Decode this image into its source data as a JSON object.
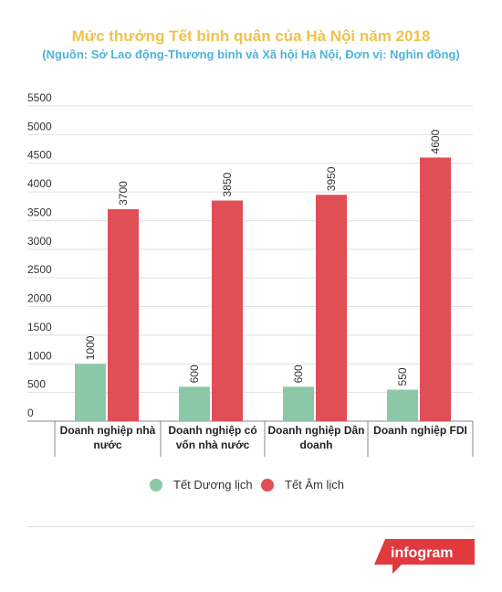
{
  "title": "Mức thưởng Tết bình quân của Hà Nội năm 2018",
  "subtitle": "(Nguồn: Sở Lao động-Thương binh và Xã hội Hà Nội, Đơn vị: Nghìn đồng)",
  "brand": "infogram",
  "colors": {
    "title": "#f0c24b",
    "subtitle": "#4fb3d9",
    "series1": "#8cc8a8",
    "series2": "#e04f55",
    "brand": "#e03a3e"
  },
  "chart_data": {
    "type": "bar",
    "title": "Mức thưởng Tết bình quân của Hà Nội năm 2018",
    "subtitle": "(Nguồn: Sở Lao động-Thương binh và Xã hội Hà Nội, Đơn vị: Nghìn đồng)",
    "categories": [
      [
        "Doanh nghiệp nhà",
        "nước"
      ],
      [
        "Doanh nghiệp có",
        "vốn nhà nước"
      ],
      [
        "Doanh nghiệp Dân",
        "doanh"
      ],
      [
        "Doanh nghiệp FDI"
      ]
    ],
    "series": [
      {
        "name": "Tết Dương lịch",
        "values": [
          1000,
          600,
          600,
          550
        ]
      },
      {
        "name": "Tết Âm lịch",
        "values": [
          3700,
          3850,
          3950,
          4600
        ]
      }
    ],
    "yticks": [
      0,
      500,
      1000,
      1500,
      2000,
      2500,
      3000,
      3500,
      4000,
      4500,
      5000,
      5500
    ],
    "ylim": [
      0,
      5500
    ],
    "grid": true,
    "legend": "bottom"
  }
}
